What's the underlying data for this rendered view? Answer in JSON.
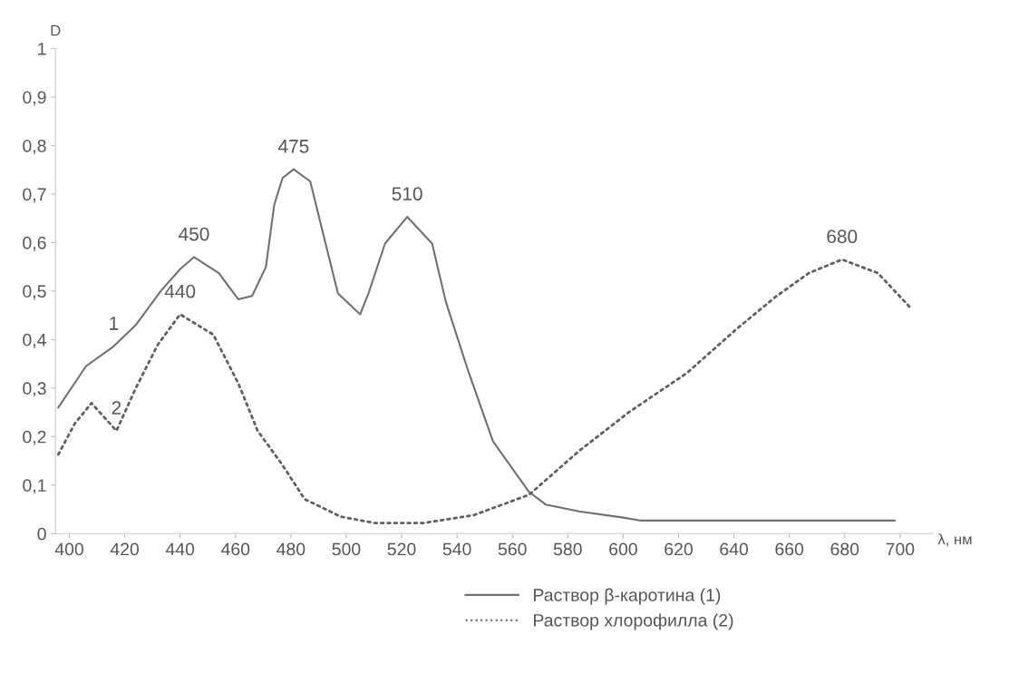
{
  "chart_data": {
    "type": "line",
    "xlabel": "λ, нм",
    "ylabel": "D",
    "xlim": [
      395,
      712
    ],
    "ylim": [
      0,
      1
    ],
    "xticks": [
      400,
      420,
      440,
      460,
      480,
      500,
      520,
      540,
      560,
      580,
      600,
      620,
      640,
      660,
      680,
      700
    ],
    "yticks": [
      {
        "value": 0,
        "label": "0"
      },
      {
        "value": 0.1,
        "label": "0,1"
      },
      {
        "value": 0.2,
        "label": "0,2"
      },
      {
        "value": 0.3,
        "label": "0,3"
      },
      {
        "value": 0.4,
        "label": "0,4"
      },
      {
        "value": 0.5,
        "label": "0,5"
      },
      {
        "value": 0.6,
        "label": "0,6"
      },
      {
        "value": 0.7,
        "label": "0,7"
      },
      {
        "value": 0.8,
        "label": "0,8"
      },
      {
        "value": 0.9,
        "label": "0,9"
      },
      {
        "value": 1,
        "label": "1"
      }
    ],
    "grid": false,
    "legend": "bottom",
    "marker": "none",
    "series": [
      {
        "name": "Раствор β-каротина (1)",
        "color": "#707070",
        "line_style": "solid",
        "x": [
          396,
          406,
          416,
          424,
          433,
          440,
          445,
          454,
          461,
          466,
          471,
          474,
          477,
          481,
          487,
          493,
          497,
          505,
          508,
          514,
          522,
          531,
          536,
          544,
          553,
          566,
          572,
          584,
          600,
          606,
          698
        ],
        "values": [
          0.26,
          0.345,
          0.386,
          0.43,
          0.5,
          0.545,
          0.57,
          0.537,
          0.483,
          0.49,
          0.55,
          0.678,
          0.733,
          0.751,
          0.726,
          0.587,
          0.495,
          0.452,
          0.495,
          0.598,
          0.653,
          0.598,
          0.477,
          0.336,
          0.19,
          0.086,
          0.06,
          0.046,
          0.033,
          0.027,
          0.027
        ]
      },
      {
        "name": "Раствор хлорофилла (2)",
        "color": "#606060",
        "line_style": "dotted",
        "x": [
          396,
          402,
          408,
          417,
          424,
          432,
          440,
          452,
          461,
          468,
          477,
          485,
          498,
          510,
          528,
          546,
          566,
          584,
          602,
          623,
          641,
          655,
          667,
          679,
          692,
          704
        ],
        "values": [
          0.163,
          0.227,
          0.269,
          0.212,
          0.3,
          0.39,
          0.452,
          0.41,
          0.31,
          0.212,
          0.141,
          0.071,
          0.035,
          0.022,
          0.022,
          0.038,
          0.08,
          0.17,
          0.25,
          0.331,
          0.422,
          0.488,
          0.537,
          0.565,
          0.537,
          0.464
        ]
      }
    ],
    "annotations": [
      {
        "text": "450",
        "x": 445,
        "y": 0.57
      },
      {
        "text": "475",
        "x": 481,
        "y": 0.751
      },
      {
        "text": "510",
        "x": 522,
        "y": 0.653
      },
      {
        "text": "440",
        "x": 440,
        "y": 0.452
      },
      {
        "text": "680",
        "x": 679,
        "y": 0.565
      },
      {
        "text": "1",
        "x": 416,
        "y": 0.386
      },
      {
        "text": "2",
        "x": 417,
        "y": 0.212
      }
    ]
  }
}
